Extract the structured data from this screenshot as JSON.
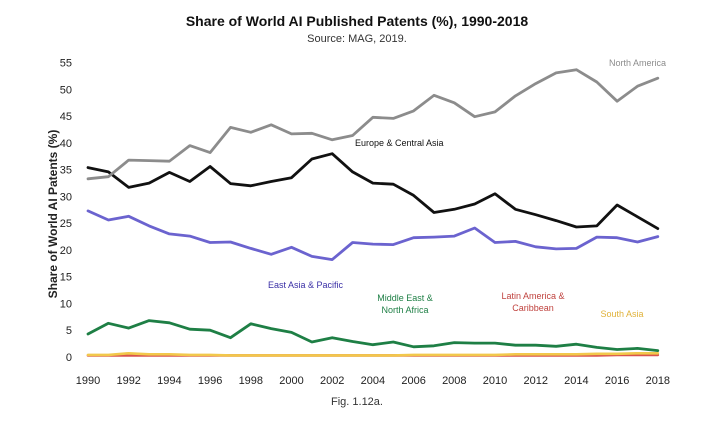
{
  "chart_data": {
    "type": "line",
    "title": "Share of World AI Published Patents (%), 1990-2018",
    "subtitle": "Source: MAG, 2019.",
    "ylabel": "Share of World AI Patents (%)",
    "xlabel": "",
    "caption": "Fig. 1.12a.",
    "x": [
      1990,
      1991,
      1992,
      1993,
      1994,
      1995,
      1996,
      1997,
      1998,
      1999,
      2000,
      2001,
      2002,
      2003,
      2004,
      2005,
      2006,
      2007,
      2008,
      2009,
      2010,
      2011,
      2012,
      2013,
      2014,
      2015,
      2016,
      2017,
      2018
    ],
    "xticks": [
      1990,
      1992,
      1994,
      1996,
      1998,
      2000,
      2002,
      2004,
      2006,
      2008,
      2010,
      2012,
      2014,
      2016,
      2018
    ],
    "yticks": [
      0,
      5,
      10,
      15,
      20,
      25,
      30,
      35,
      40,
      45,
      50,
      55
    ],
    "xlim": [
      1990,
      2018.5
    ],
    "ylim": [
      0,
      57
    ],
    "grid": false,
    "legend": "none (inline series labels)",
    "series": [
      {
        "name": "North America",
        "color": "#8c8c8c",
        "label_color": "#8c8c8c",
        "values": [
          33.3,
          33.7,
          36.8,
          36.7,
          36.6,
          39.5,
          38.2,
          42.9,
          42.0,
          43.4,
          41.7,
          41.8,
          40.6,
          41.4,
          44.8,
          44.6,
          46.0,
          48.9,
          47.5,
          44.9,
          45.8,
          48.8,
          51.1,
          53.1,
          53.7,
          51.4,
          47.8,
          50.6,
          52.1
        ]
      },
      {
        "name": "Europe & Central Asia",
        "color": "#111111",
        "label_color": "#111111",
        "values": [
          35.4,
          34.6,
          31.7,
          32.5,
          34.5,
          32.8,
          35.6,
          32.4,
          32.0,
          32.8,
          33.5,
          37.0,
          38.0,
          34.6,
          32.5,
          32.3,
          30.2,
          27.0,
          27.6,
          28.6,
          30.5,
          27.6,
          26.6,
          25.5,
          24.3,
          24.5,
          28.4,
          26.2,
          24.0
        ]
      },
      {
        "name": "East Asia & Pacific",
        "color": "#6b63cf",
        "label_color": "#3a2fa6",
        "values": [
          27.3,
          25.6,
          26.3,
          24.5,
          23.0,
          22.6,
          21.4,
          21.5,
          20.3,
          19.2,
          20.5,
          18.8,
          18.2,
          21.4,
          21.1,
          21.0,
          22.3,
          22.4,
          22.6,
          24.1,
          21.4,
          21.6,
          20.6,
          20.2,
          20.3,
          22.4,
          22.3,
          21.5,
          22.5
        ]
      },
      {
        "name": "Middle East & North Africa",
        "color": "#1e7f45",
        "label_color": "#1e7f45",
        "values": [
          4.3,
          6.3,
          5.4,
          6.8,
          6.4,
          5.2,
          5.0,
          3.6,
          6.2,
          5.3,
          4.6,
          2.8,
          3.6,
          2.9,
          2.3,
          2.8,
          1.9,
          2.1,
          2.7,
          2.6,
          2.6,
          2.2,
          2.2,
          2.0,
          2.4,
          1.8,
          1.4,
          1.6,
          1.2
        ]
      },
      {
        "name": "Latin America & Caribbean",
        "color": "#d9534f",
        "label_color": "#c0433f",
        "values": [
          0.3,
          0.3,
          0.3,
          0.3,
          0.3,
          0.3,
          0.3,
          0.3,
          0.3,
          0.3,
          0.3,
          0.3,
          0.3,
          0.3,
          0.3,
          0.3,
          0.3,
          0.3,
          0.3,
          0.3,
          0.3,
          0.3,
          0.3,
          0.3,
          0.3,
          0.3,
          0.4,
          0.4,
          0.4
        ]
      },
      {
        "name": "South Asia",
        "color": "#f2c84b",
        "label_color": "#e0b23a",
        "values": [
          0.4,
          0.4,
          0.7,
          0.5,
          0.5,
          0.4,
          0.4,
          0.3,
          0.3,
          0.3,
          0.3,
          0.3,
          0.3,
          0.3,
          0.3,
          0.3,
          0.4,
          0.4,
          0.4,
          0.4,
          0.4,
          0.5,
          0.5,
          0.5,
          0.5,
          0.6,
          0.6,
          0.7,
          0.7
        ]
      }
    ],
    "annotations": [
      {
        "series": "North America",
        "lines": [
          "North America"
        ]
      },
      {
        "series": "Europe & Central Asia",
        "lines": [
          "Europe & Central Asia"
        ]
      },
      {
        "series": "East Asia & Pacific",
        "lines": [
          "East Asia & Pacific"
        ]
      },
      {
        "series": "Middle East & North Africa",
        "lines": [
          "Middle East &",
          "North Africa"
        ]
      },
      {
        "series": "Latin America & Caribbean",
        "lines": [
          "Latin America &",
          "Caribbean"
        ]
      },
      {
        "series": "South Asia",
        "lines": [
          "South Asia"
        ]
      }
    ]
  }
}
